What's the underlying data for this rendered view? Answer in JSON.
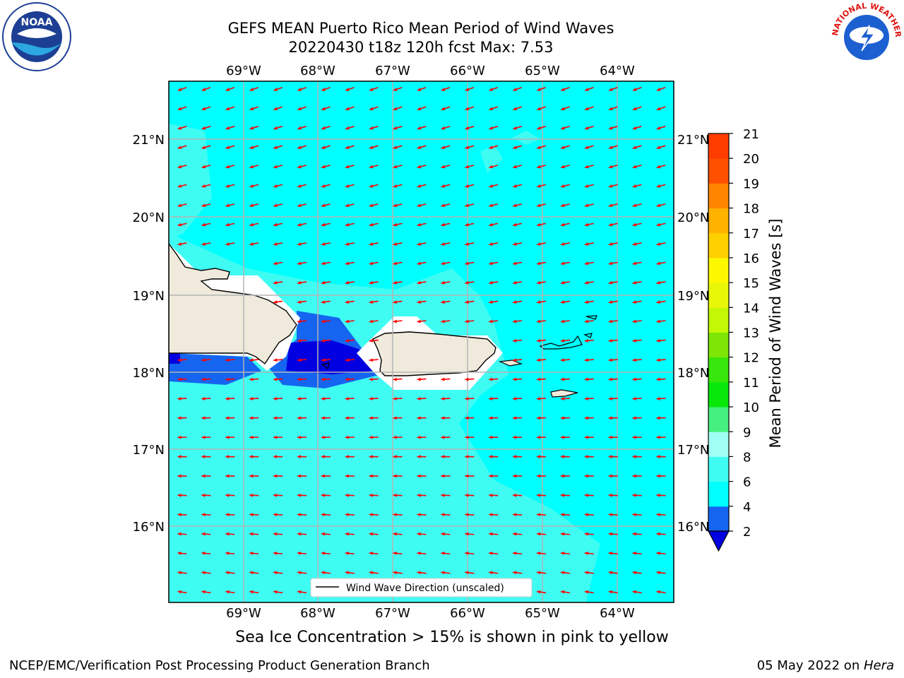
{
  "title": {
    "line1": "GEFS MEAN Puerto Rico Mean Period of Wind Waves",
    "line2": "20220430 t18z 120h fcst   Max: 7.53"
  },
  "map": {
    "lon_labels": [
      "69°W",
      "68°W",
      "67°W",
      "66°W",
      "65°W",
      "64°W"
    ],
    "lat_labels": [
      "21°N",
      "20°N",
      "19°N",
      "18°N",
      "17°N",
      "16°N"
    ],
    "ocean_color": "#00ffff",
    "land_color": "#efeadb",
    "arrow_color": "#ff0000",
    "legend_label": "Wind Wave Direction (unscaled)"
  },
  "colorbar": {
    "label": "Mean Period of Wind Waves [s]",
    "ticks": [
      "2",
      "4",
      "6",
      "8",
      "9",
      "10",
      "11",
      "12",
      "13",
      "14",
      "15",
      "16",
      "17",
      "18",
      "19",
      "20",
      "21"
    ],
    "colors": [
      "#1565f0",
      "#00ffff",
      "#3ffcf3",
      "#a0fff4",
      "#46f080",
      "#08e80a",
      "#37e60a",
      "#7ee506",
      "#c3f705",
      "#e8f708",
      "#fdf800",
      "#ffd000",
      "#ffb200",
      "#ff8400",
      "#ff5000",
      "#ff3c00",
      "#ff0000"
    ],
    "extend_color": "#0000e0"
  },
  "caption": "Sea Ice Concentration > 15% is shown in pink to yellow",
  "footer": {
    "left": "NCEP/EMC/Verification Post Processing Product Generation Branch",
    "right_prefix": "05 May 2022 on ",
    "right_host": "Hera"
  },
  "logos": {
    "noaa_text": "NOAA",
    "nws_text": "NATIONAL WEATHER SERVICE"
  }
}
